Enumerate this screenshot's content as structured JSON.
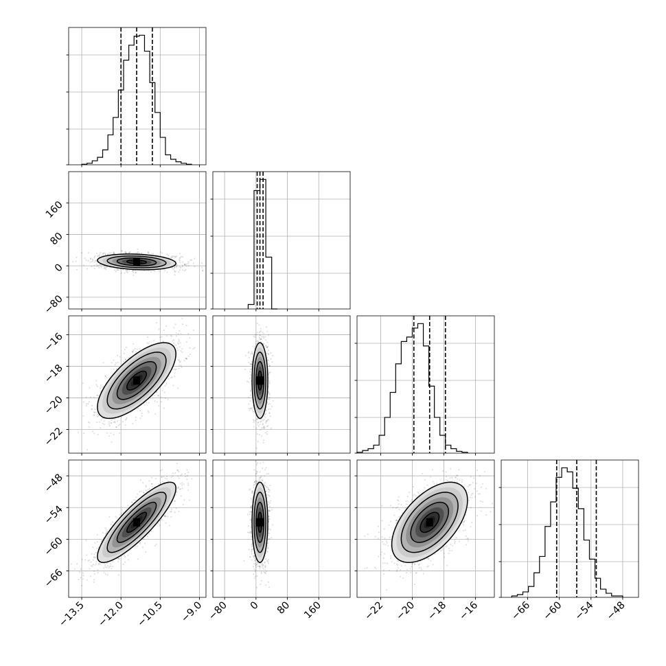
{
  "chart_data": {
    "type": "corner",
    "title": "",
    "grid": true,
    "colors": {
      "points": "#000000",
      "lines": "#000000",
      "grid": "#b0b0b0",
      "background": "#ffffff"
    },
    "parameters": [
      {
        "id": "p0",
        "range": [
          -14.0,
          -8.75
        ],
        "ticks": [
          {
            "value": -13.5,
            "label": "−13.5"
          },
          {
            "value": -12.0,
            "label": "−12.0"
          },
          {
            "value": -10.5,
            "label": "−10.5"
          },
          {
            "value": -9.0,
            "label": "−9.0"
          }
        ],
        "quantiles": [
          -12.0,
          -11.4,
          -10.8
        ],
        "histogram": {
          "start": -13.5,
          "bin_width": 0.2,
          "counts": [
            1,
            3,
            8,
            15,
            30,
            60,
            95,
            150,
            210,
            240,
            258,
            260,
            228,
            165,
            105,
            55,
            20,
            11,
            6,
            3,
            1
          ]
        }
      },
      {
        "id": "p1",
        "range": [
          -110,
          240
        ],
        "ticks": [
          {
            "value": -80,
            "label": "−80"
          },
          {
            "value": 0,
            "label": "0"
          },
          {
            "value": 80,
            "label": "80"
          },
          {
            "value": 160,
            "label": "160"
          }
        ],
        "quantiles": [
          3,
          10,
          18
        ],
        "histogram": {
          "start": -20,
          "bin_width": 15,
          "counts": [
            12,
            320,
            350,
            140,
            0
          ]
        }
      },
      {
        "id": "p2",
        "range": [
          -23.5,
          -14.8
        ],
        "ticks": [
          {
            "value": -22,
            "label": "−22"
          },
          {
            "value": -20,
            "label": "−20"
          },
          {
            "value": -18,
            "label": "−18"
          },
          {
            "value": -16,
            "label": "−16"
          }
        ],
        "quantiles": [
          -19.9,
          -18.9,
          -17.9
        ],
        "histogram": {
          "start": -23.5,
          "bin_width": 0.35,
          "counts": [
            1,
            3,
            5,
            9,
            20,
            40,
            68,
            100,
            125,
            130,
            140,
            145,
            120,
            75,
            40,
            20,
            9,
            5,
            2,
            1
          ]
        }
      },
      {
        "id": "p3",
        "range": [
          -71,
          -45
        ],
        "ticks": [
          {
            "value": -66,
            "label": "−66"
          },
          {
            "value": -60,
            "label": "−60"
          },
          {
            "value": -54,
            "label": "−54"
          },
          {
            "value": -48,
            "label": "−48"
          }
        ],
        "quantiles": [
          -60.5,
          -56.7,
          -53.0
        ],
        "histogram": {
          "start": -69,
          "bin_width": 1.05,
          "counts": [
            1,
            2,
            4,
            8,
            18,
            30,
            52,
            70,
            88,
            95,
            92,
            80,
            65,
            42,
            28,
            14,
            6,
            3,
            1,
            1
          ]
        }
      }
    ],
    "pairs": [
      {
        "x": "p0",
        "y": "p1",
        "center": [
          -11.4,
          10
        ],
        "sd": [
          0.75,
          10
        ],
        "corr": -0.2
      },
      {
        "x": "p0",
        "y": "p2",
        "center": [
          -11.4,
          -18.9
        ],
        "sd": [
          0.75,
          1.2
        ],
        "corr": 0.7
      },
      {
        "x": "p1",
        "y": "p2",
        "center": [
          10,
          -18.9
        ],
        "sd": [
          10,
          1.2
        ],
        "corr": 0.0
      },
      {
        "x": "p0",
        "y": "p3",
        "center": [
          -11.4,
          -56.8
        ],
        "sd": [
          0.75,
          3.8
        ],
        "corr": 0.85
      },
      {
        "x": "p1",
        "y": "p3",
        "center": [
          10,
          -56.8
        ],
        "sd": [
          10,
          3.8
        ],
        "corr": 0.0
      },
      {
        "x": "p2",
        "y": "p3",
        "center": [
          -18.9,
          -56.8
        ],
        "sd": [
          1.2,
          3.8
        ],
        "corr": 0.55
      }
    ],
    "contour_levels_sigma": [
      0.5,
      1.0,
      1.5,
      2.0
    ]
  }
}
